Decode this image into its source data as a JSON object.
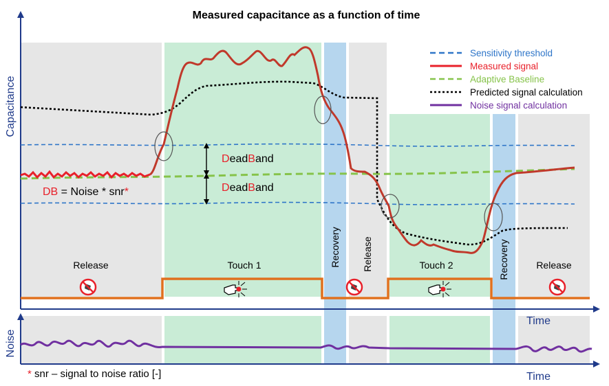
{
  "chart_data": {
    "type": "line",
    "title": "Measured capacitance as a function of time",
    "ylabel": "Capacitance",
    "xlabel": "Time",
    "noise_ylabel": "Noise",
    "noise_xlabel": "Time",
    "legend": {
      "placement": "top-right",
      "entries": [
        {
          "key": "sens",
          "label": "Sensitivity threshold",
          "color": "#2e75c8",
          "dash": "dashed",
          "text_color": "#2e75c8"
        },
        {
          "key": "meas",
          "label": "Measured signal",
          "color": "#e8202a",
          "dash": "solid",
          "text_color": "#e8202a"
        },
        {
          "key": "base",
          "label": "Adaptive Baseline",
          "color": "#86c34a",
          "dash": "dashed",
          "text_color": "#86c34a"
        },
        {
          "key": "pred",
          "label": "Predicted signal calculation",
          "color": "#000000",
          "dash": "dotted",
          "text_color": "#000000"
        },
        {
          "key": "noise",
          "label": "Noise signal calculation",
          "color": "#7030a0",
          "dash": "solid",
          "text_color": "#7030a0"
        }
      ]
    },
    "phases": [
      {
        "label": "Release",
        "state": "release",
        "vertical": false
      },
      {
        "label": "Touch 1",
        "state": "touch",
        "vertical": false
      },
      {
        "label": "Recovery",
        "state": "recovery",
        "vertical": true
      },
      {
        "label": "Release",
        "state": "release",
        "vertical": true
      },
      {
        "label": "Touch 2",
        "state": "touch",
        "vertical": false
      },
      {
        "label": "Recovery",
        "state": "recovery",
        "vertical": true
      },
      {
        "label": "Release",
        "state": "release",
        "vertical": false
      }
    ],
    "annotations": {
      "deadband_upper": {
        "first": "D",
        "mid1": "ead",
        "b": "B",
        "rest": "and"
      },
      "deadband_lower": {
        "first": "D",
        "mid1": "ead",
        "b": "B",
        "rest": "and"
      },
      "db_formula": {
        "db": "DB",
        "rest": " = Noise * snr",
        "star": "*"
      },
      "footnote": {
        "star": "*",
        "text": " snr – signal to noise ratio [-]"
      }
    },
    "colors": {
      "release": "#e6e6e6",
      "touch": "#c9ecd6",
      "recovery": "#b6d6ee",
      "touch_state": "#e0701e",
      "axis": "#1f3a8a",
      "measured_dark": "#c0392b"
    }
  }
}
